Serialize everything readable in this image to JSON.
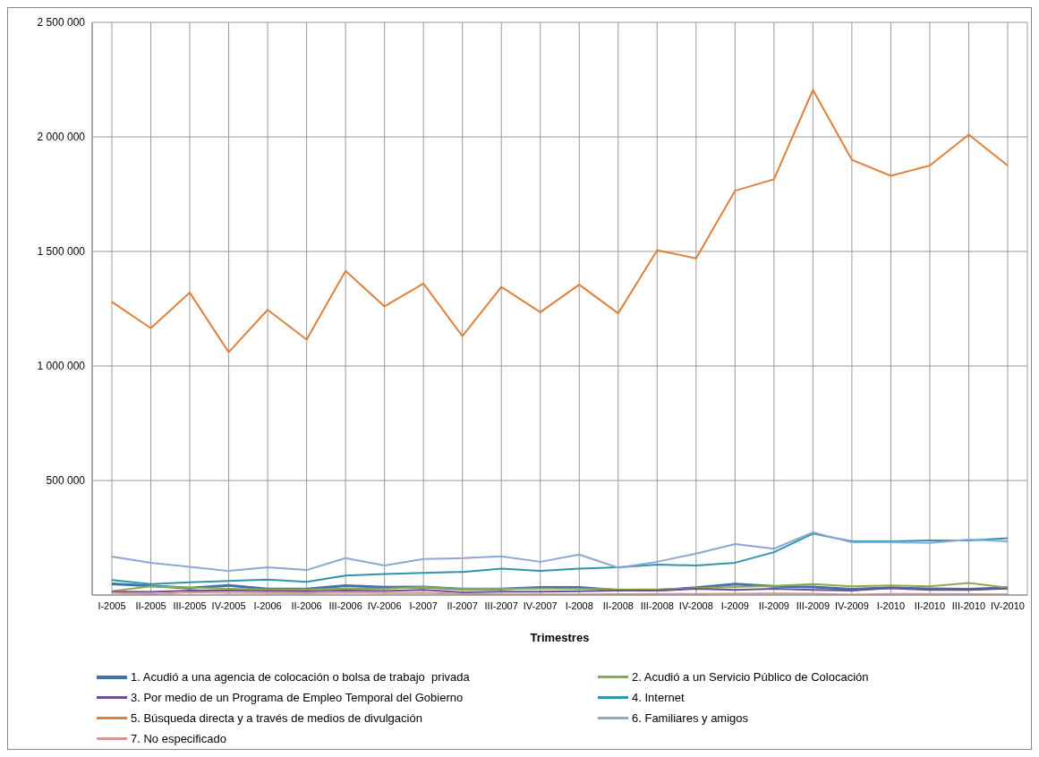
{
  "chart_data": {
    "type": "line",
    "xlabel": "Trimestres",
    "categories": [
      "I-2005",
      "II-2005",
      "III-2005",
      "IV-2005",
      "I-2006",
      "II-2006",
      "III-2006",
      "IV-2006",
      "I-2007",
      "II-2007",
      "III-2007",
      "IV-2007",
      "I-2008",
      "II-2008",
      "III-2008",
      "IV-2008",
      "I-2009",
      "II-2009",
      "III-2009",
      "IV-2009",
      "I-2010",
      "II-2010",
      "III-2010",
      "IV-2010"
    ],
    "series": [
      {
        "name": "1. Acudió a una agencia de colocación o bolsa de trabajo  privada",
        "color": "#4470b0",
        "values": [
          49000,
          40000,
          30000,
          42000,
          26000,
          26000,
          41000,
          34000,
          35000,
          26000,
          26000,
          33000,
          33000,
          21000,
          21000,
          32000,
          48000,
          38000,
          35000,
          25000,
          32000,
          27000,
          25000,
          32000
        ]
      },
      {
        "name": "2. Acudió a un Servicio Público de Colocación",
        "color": "#8bab4a",
        "values": [
          17000,
          38000,
          32000,
          27000,
          24000,
          24000,
          28000,
          27000,
          35000,
          27000,
          27000,
          28000,
          27000,
          24000,
          24000,
          30000,
          35000,
          40000,
          48000,
          38000,
          42000,
          38000,
          53000,
          32000
        ]
      },
      {
        "name": "3. Por medio de un Programa de Empleo Temporal del Gobierno",
        "color": "#6a4f93",
        "values": [
          15000,
          14000,
          20000,
          20000,
          18000,
          17000,
          20000,
          18000,
          22000,
          12000,
          15000,
          15000,
          17000,
          20000,
          20000,
          27000,
          22000,
          27000,
          22000,
          20000,
          30000,
          22000,
          22000,
          28000
        ]
      },
      {
        "name": "4. Internet",
        "color": "#2e95ad",
        "values": [
          65000,
          48000,
          56000,
          62000,
          67000,
          58000,
          85000,
          92000,
          97000,
          101000,
          115000,
          105000,
          115000,
          121000,
          133000,
          129000,
          141000,
          187000,
          268000,
          234000,
          234000,
          238000,
          238000,
          248000
        ]
      },
      {
        "name": "5. Búsqueda directa y a través de medios de divulgación",
        "color": "#e0813a",
        "values": [
          1280000,
          1165000,
          1320000,
          1060000,
          1245000,
          1115000,
          1415000,
          1260000,
          1360000,
          1130000,
          1345000,
          1235000,
          1355000,
          1230000,
          1505000,
          1470000,
          1765000,
          1815000,
          2205000,
          1900000,
          1830000,
          1875000,
          2010000,
          1875000
        ]
      },
      {
        "name": "6. Familiares y amigos",
        "color": "#8ea5d5",
        "values": [
          168000,
          141000,
          123000,
          105000,
          121000,
          109000,
          161000,
          129000,
          157000,
          161000,
          169000,
          145000,
          177000,
          119000,
          145000,
          181000,
          223000,
          202000,
          274000,
          230000,
          230000,
          228000,
          242000,
          234000
        ]
      },
      {
        "name": "7. No especificado",
        "color": "#d99592",
        "values": [
          10000,
          4000,
          12000,
          10000,
          9000,
          8000,
          11000,
          9000,
          10000,
          5000,
          3000,
          3000,
          3000,
          4000,
          5000,
          5000,
          6000,
          7000,
          6000,
          2000,
          5000,
          5000,
          4000,
          3000
        ]
      }
    ],
    "ylim": [
      0,
      2500000
    ],
    "yticks": [
      {
        "value": 0,
        "label": null
      },
      {
        "value": 500000,
        "label": "500 000"
      },
      {
        "value": 1000000,
        "label": "1 000 000"
      },
      {
        "value": 1500000,
        "label": "1 500 000"
      },
      {
        "value": 2000000,
        "label": "2 000 000"
      },
      {
        "value": 2500000,
        "label": "2 500 000"
      }
    ],
    "grid": true,
    "legend": "bottom",
    "marker": "none",
    "line_style": "solid"
  }
}
